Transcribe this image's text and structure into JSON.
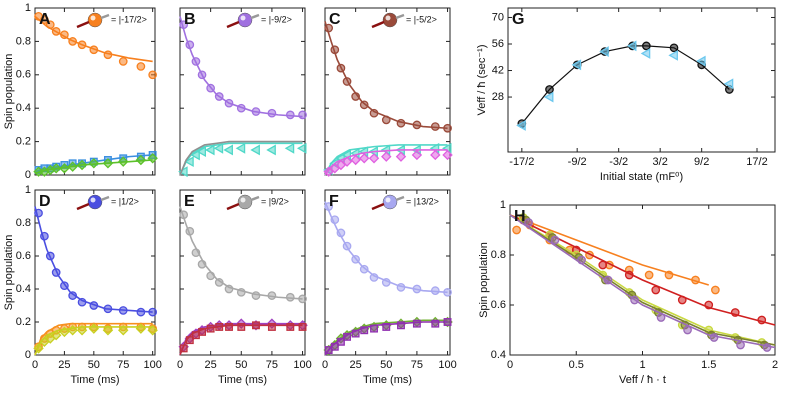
{
  "chart_data": [
    {
      "type": "scatter",
      "letter": "A",
      "state": "= |-17/2>",
      "ylabel": "Spin population",
      "show_xtick_labels": false,
      "show_ytick_labels": true,
      "xlim": [
        0,
        102
      ],
      "ylim": [
        0,
        1
      ],
      "xticks": [
        0,
        25,
        50,
        75,
        100
      ],
      "yticks": [
        0,
        0.2,
        0.4,
        0.6,
        0.8,
        1
      ],
      "x": [
        3,
        8,
        13,
        18,
        25,
        32,
        40,
        50,
        62,
        75,
        90,
        100
      ],
      "fit_x": [
        0,
        5,
        10,
        20,
        30,
        40,
        60,
        80,
        100
      ],
      "series": [
        {
          "color": "#f7801f",
          "marker": "circle",
          "values": [
            0.95,
            0.93,
            0.9,
            0.86,
            0.84,
            0.8,
            0.78,
            0.75,
            0.72,
            0.68,
            0.65,
            0.6
          ],
          "fit": [
            0.95,
            0.92,
            0.89,
            0.85,
            0.81,
            0.78,
            0.73,
            0.7,
            0.68
          ]
        },
        {
          "color": "#3a8fe0",
          "marker": "square",
          "values": [
            0.03,
            0.04,
            0.04,
            0.05,
            0.06,
            0.07,
            0.07,
            0.08,
            0.09,
            0.1,
            0.11,
            0.12
          ],
          "fit": [
            0.02,
            0.03,
            0.04,
            0.05,
            0.06,
            0.07,
            0.09,
            0.11,
            0.12
          ]
        },
        {
          "color": "#5cc12a",
          "marker": "diamond",
          "values": [
            0.02,
            0.02,
            0.03,
            0.04,
            0.04,
            0.05,
            0.06,
            0.07,
            0.07,
            0.08,
            0.09,
            0.1
          ],
          "fit": [
            0.01,
            0.02,
            0.03,
            0.04,
            0.05,
            0.06,
            0.07,
            0.08,
            0.09
          ]
        }
      ]
    },
    {
      "type": "scatter",
      "letter": "B",
      "state": "= |-9/2>",
      "show_xtick_labels": false,
      "show_ytick_labels": false,
      "xlim": [
        0,
        102
      ],
      "ylim": [
        0,
        1
      ],
      "xticks": [
        0,
        25,
        50,
        75,
        100
      ],
      "yticks": [
        0,
        0.2,
        0.4,
        0.6,
        0.8,
        1
      ],
      "x": [
        3,
        8,
        13,
        18,
        25,
        32,
        40,
        50,
        62,
        75,
        90,
        100
      ],
      "fit_x": [
        0,
        5,
        10,
        20,
        30,
        40,
        60,
        80,
        100
      ],
      "series": [
        {
          "color": "#a070e0",
          "marker": "circle",
          "values": [
            0.9,
            0.78,
            0.68,
            0.6,
            0.52,
            0.47,
            0.43,
            0.4,
            0.38,
            0.37,
            0.36,
            0.36
          ],
          "fit": [
            0.95,
            0.82,
            0.72,
            0.57,
            0.48,
            0.43,
            0.38,
            0.36,
            0.35
          ]
        },
        {
          "color": "#50d8c8",
          "marker": "triangle",
          "values": [
            0.02,
            0.08,
            0.12,
            0.14,
            0.15,
            0.16,
            0.15,
            0.16,
            0.15,
            0.15,
            0.16,
            0.16
          ],
          "fit": [
            0,
            0.08,
            0.13,
            0.17,
            0.18,
            0.19,
            0.19,
            0.19,
            0.19
          ]
        },
        {
          "color": "#909090",
          "marker": "none",
          "fit": [
            0,
            0.09,
            0.14,
            0.18,
            0.19,
            0.2,
            0.2,
            0.2,
            0.2
          ]
        }
      ]
    },
    {
      "type": "scatter",
      "letter": "C",
      "state": "= |-5/2>",
      "show_xtick_labels": false,
      "show_ytick_labels": false,
      "xlim": [
        0,
        102
      ],
      "ylim": [
        0,
        1
      ],
      "xticks": [
        0,
        25,
        50,
        75,
        100
      ],
      "yticks": [
        0,
        0.2,
        0.4,
        0.6,
        0.8,
        1
      ],
      "x": [
        3,
        8,
        13,
        18,
        25,
        32,
        40,
        50,
        62,
        75,
        90,
        100
      ],
      "fit_x": [
        0,
        5,
        10,
        20,
        30,
        40,
        60,
        80,
        100
      ],
      "series": [
        {
          "color": "#9a4a3a",
          "marker": "circle",
          "values": [
            0.88,
            0.75,
            0.64,
            0.56,
            0.47,
            0.42,
            0.37,
            0.33,
            0.31,
            0.3,
            0.29,
            0.28
          ],
          "fit": [
            0.92,
            0.8,
            0.69,
            0.54,
            0.44,
            0.38,
            0.32,
            0.29,
            0.28
          ]
        },
        {
          "color": "#50d8c8",
          "marker": "triangle",
          "values": [
            0.03,
            0.07,
            0.1,
            0.12,
            0.13,
            0.14,
            0.14,
            0.15,
            0.15,
            0.15,
            0.16,
            0.16
          ],
          "fit": [
            0,
            0.07,
            0.11,
            0.15,
            0.16,
            0.17,
            0.18,
            0.18,
            0.18
          ]
        },
        {
          "color": "#e060e0",
          "marker": "diamond",
          "values": [
            0.02,
            0.04,
            0.06,
            0.08,
            0.09,
            0.1,
            0.1,
            0.11,
            0.11,
            0.12,
            0.12,
            0.12
          ],
          "fit": [
            0,
            0.05,
            0.08,
            0.11,
            0.13,
            0.14,
            0.15,
            0.15,
            0.15
          ]
        }
      ]
    },
    {
      "type": "scatter",
      "letter": "D",
      "state": "= |1/2>",
      "ylabel": "Spin population",
      "xlabel": "Time (ms)",
      "show_xtick_labels": true,
      "show_ytick_labels": true,
      "xlim": [
        0,
        102
      ],
      "ylim": [
        0,
        1
      ],
      "xticks": [
        0,
        25,
        50,
        75,
        100
      ],
      "yticks": [
        0,
        0.2,
        0.4,
        0.6,
        0.8,
        1
      ],
      "x": [
        3,
        8,
        13,
        18,
        25,
        32,
        40,
        50,
        62,
        75,
        90,
        100
      ],
      "fit_x": [
        0,
        5,
        10,
        20,
        30,
        40,
        60,
        80,
        100
      ],
      "series": [
        {
          "color": "#4a4ee0",
          "marker": "circle",
          "values": [
            0.86,
            0.72,
            0.6,
            0.5,
            0.42,
            0.36,
            0.32,
            0.3,
            0.28,
            0.27,
            0.26,
            0.26
          ],
          "fit": [
            0.9,
            0.76,
            0.64,
            0.48,
            0.38,
            0.33,
            0.28,
            0.27,
            0.26
          ]
        },
        {
          "color": "#f7901f",
          "marker": "circle",
          "values": [
            0.05,
            0.1,
            0.13,
            0.15,
            0.16,
            0.17,
            0.17,
            0.17,
            0.16,
            0.17,
            0.17,
            0.16
          ],
          "fit": [
            0,
            0.1,
            0.14,
            0.18,
            0.19,
            0.19,
            0.19,
            0.19,
            0.19
          ]
        },
        {
          "color": "#c8d020",
          "marker": "diamond",
          "values": [
            0.04,
            0.08,
            0.1,
            0.12,
            0.14,
            0.15,
            0.15,
            0.16,
            0.15,
            0.15,
            0.16,
            0.15
          ],
          "fit": [
            0,
            0.08,
            0.12,
            0.15,
            0.16,
            0.17,
            0.17,
            0.17,
            0.17
          ]
        }
      ]
    },
    {
      "type": "scatter",
      "letter": "E",
      "state": "= |9/2>",
      "xlabel": "Time (ms)",
      "show_xtick_labels": true,
      "show_ytick_labels": false,
      "xlim": [
        0,
        102
      ],
      "ylim": [
        0,
        1
      ],
      "xticks": [
        0,
        25,
        50,
        75,
        100
      ],
      "yticks": [
        0,
        0.2,
        0.4,
        0.6,
        0.8,
        1
      ],
      "x": [
        3,
        8,
        13,
        18,
        25,
        32,
        40,
        50,
        62,
        75,
        90,
        100
      ],
      "fit_x": [
        0,
        5,
        10,
        20,
        30,
        40,
        60,
        80,
        100
      ],
      "series": [
        {
          "color": "#a8a8a8",
          "marker": "circle",
          "values": [
            0.85,
            0.75,
            0.62,
            0.55,
            0.48,
            0.44,
            0.4,
            0.38,
            0.36,
            0.36,
            0.35,
            0.34
          ],
          "fit": [
            0.9,
            0.79,
            0.69,
            0.55,
            0.46,
            0.41,
            0.37,
            0.35,
            0.34
          ]
        },
        {
          "color": "#a040c0",
          "marker": "diamond",
          "values": [
            0.05,
            0.1,
            0.13,
            0.15,
            0.17,
            0.18,
            0.18,
            0.19,
            0.18,
            0.19,
            0.18,
            0.18
          ],
          "fit": [
            0,
            0.1,
            0.14,
            0.17,
            0.18,
            0.19,
            0.19,
            0.19,
            0.19
          ]
        },
        {
          "color": "#c03040",
          "marker": "square",
          "values": [
            0.04,
            0.09,
            0.12,
            0.14,
            0.16,
            0.17,
            0.17,
            0.17,
            0.18,
            0.17,
            0.17,
            0.17
          ],
          "fit": [
            0,
            0.09,
            0.13,
            0.16,
            0.17,
            0.18,
            0.18,
            0.18,
            0.18
          ]
        }
      ]
    },
    {
      "type": "scatter",
      "letter": "F",
      "state": "= |13/2>",
      "xlabel": "Time (ms)",
      "show_xtick_labels": true,
      "show_ytick_labels": false,
      "xlim": [
        0,
        102
      ],
      "ylim": [
        0,
        1
      ],
      "xticks": [
        0,
        25,
        50,
        75,
        100
      ],
      "yticks": [
        0,
        0.2,
        0.4,
        0.6,
        0.8,
        1
      ],
      "x": [
        3,
        8,
        13,
        18,
        25,
        32,
        40,
        50,
        62,
        75,
        90,
        100
      ],
      "fit_x": [
        0,
        5,
        10,
        20,
        30,
        40,
        60,
        80,
        100
      ],
      "series": [
        {
          "color": "#a8a8f0",
          "marker": "circle",
          "values": [
            0.9,
            0.82,
            0.74,
            0.66,
            0.58,
            0.52,
            0.47,
            0.44,
            0.41,
            0.4,
            0.39,
            0.38
          ],
          "fit": [
            0.93,
            0.84,
            0.76,
            0.63,
            0.54,
            0.48,
            0.42,
            0.39,
            0.38
          ]
        },
        {
          "color": "#70b030",
          "marker": "diamond",
          "values": [
            0.03,
            0.06,
            0.1,
            0.12,
            0.14,
            0.16,
            0.17,
            0.18,
            0.19,
            0.2,
            0.2,
            0.2
          ],
          "fit": [
            0,
            0.05,
            0.09,
            0.14,
            0.17,
            0.19,
            0.2,
            0.21,
            0.21
          ]
        },
        {
          "color": "#9030b0",
          "marker": "square",
          "values": [
            0.03,
            0.05,
            0.08,
            0.11,
            0.13,
            0.15,
            0.16,
            0.17,
            0.18,
            0.19,
            0.19,
            0.2
          ],
          "fit": [
            0,
            0.05,
            0.08,
            0.13,
            0.16,
            0.18,
            0.19,
            0.2,
            0.2
          ]
        }
      ]
    },
    {
      "type": "scatter",
      "letter": "G",
      "ylabel": "Veff / ħ (sec⁻¹)",
      "xlabel": "Initial state (mF⁰)",
      "show_xtick_labels": true,
      "show_ytick_labels": true,
      "xlim": [
        -9.5,
        9.8
      ],
      "ylim": [
        -1,
        75
      ],
      "xticks": [
        {
          "value": -8.5,
          "label": "-17/2"
        },
        {
          "value": -4.5,
          "label": "-9/2"
        },
        {
          "value": -1.5,
          "label": "-3/2"
        },
        {
          "value": 1.5,
          "label": "3/2"
        },
        {
          "value": 4.5,
          "label": "9/2"
        },
        {
          "value": 8.5,
          "label": "17/2"
        }
      ],
      "yticks": [
        28,
        42,
        56,
        70
      ],
      "x": [
        -8.5,
        -6.5,
        -4.5,
        -2.5,
        -0.5,
        0.5,
        2.5,
        4.5,
        6.5
      ],
      "series": [
        {
          "color": "#111111",
          "marker": "circle",
          "connect": true,
          "values": [
            14,
            32,
            45,
            52,
            55,
            55,
            54,
            45,
            32
          ]
        },
        {
          "color": "#6cc8ee",
          "marker": "triangle",
          "values": [
            13,
            28,
            45,
            52,
            55,
            51,
            50,
            47,
            35
          ]
        }
      ]
    },
    {
      "type": "scatter",
      "letter": "H",
      "ylabel": "Spin population",
      "xlabel": "Veff / ħ · t",
      "show_xtick_labels": true,
      "show_ytick_labels": true,
      "xlim": [
        0,
        2
      ],
      "ylim": [
        0.4,
        1
      ],
      "xticks": [
        0,
        0.5,
        1,
        1.5,
        2
      ],
      "yticks": [
        0.4,
        0.6,
        0.8,
        1
      ],
      "series": [
        {
          "color": "#f7801f",
          "marker": "circle",
          "x": [
            0.05,
            0.15,
            0.3,
            0.45,
            0.6,
            0.75,
            0.9,
            1.05,
            1.2,
            1.4,
            1.55
          ],
          "values": [
            0.9,
            0.92,
            0.86,
            0.82,
            0.8,
            0.76,
            0.74,
            0.72,
            0.72,
            0.7,
            0.66
          ],
          "fit_x": [
            0,
            0.5,
            1,
            1.5
          ],
          "fit": [
            0.96,
            0.86,
            0.76,
            0.68
          ]
        },
        {
          "color": "#d02020",
          "marker": "circle",
          "x": [
            0.1,
            0.3,
            0.5,
            0.7,
            0.9,
            1.1,
            1.3,
            1.5,
            1.7,
            1.9
          ],
          "values": [
            0.94,
            0.88,
            0.82,
            0.76,
            0.72,
            0.66,
            0.62,
            0.6,
            0.57,
            0.54
          ],
          "fit_x": [
            0,
            0.5,
            1,
            1.5,
            2
          ],
          "fit": [
            0.96,
            0.83,
            0.7,
            0.59,
            0.52
          ]
        },
        {
          "color": "#c8d840",
          "marker": "circle",
          "x": [
            0.1,
            0.3,
            0.5,
            0.7,
            0.9,
            1.1,
            1.3,
            1.5,
            1.7,
            1.9
          ],
          "values": [
            0.95,
            0.88,
            0.8,
            0.72,
            0.65,
            0.58,
            0.52,
            0.5,
            0.47,
            0.45
          ],
          "fit_x": [
            0,
            0.5,
            1,
            1.5,
            2
          ],
          "fit": [
            0.96,
            0.8,
            0.62,
            0.5,
            0.44
          ]
        },
        {
          "color": "#7a8030",
          "marker": "circle",
          "x": [
            0.12,
            0.32,
            0.52,
            0.72,
            0.92,
            1.12,
            1.32,
            1.52,
            1.72,
            1.92
          ],
          "values": [
            0.94,
            0.87,
            0.79,
            0.7,
            0.64,
            0.57,
            0.52,
            0.48,
            0.46,
            0.44
          ],
          "fit_x": [
            0,
            0.5,
            1,
            1.5,
            2
          ],
          "fit": [
            0.96,
            0.79,
            0.61,
            0.49,
            0.44
          ]
        },
        {
          "color": "#9a6ab8",
          "marker": "circle",
          "x": [
            0.14,
            0.34,
            0.54,
            0.74,
            0.94,
            1.14,
            1.34,
            1.54,
            1.74,
            1.94
          ],
          "values": [
            0.93,
            0.86,
            0.78,
            0.7,
            0.62,
            0.55,
            0.5,
            0.47,
            0.44,
            0.43
          ],
          "fit_x": [
            0,
            0.5,
            1,
            1.5,
            2
          ],
          "fit": [
            0.96,
            0.78,
            0.6,
            0.48,
            0.43
          ]
        }
      ]
    }
  ]
}
